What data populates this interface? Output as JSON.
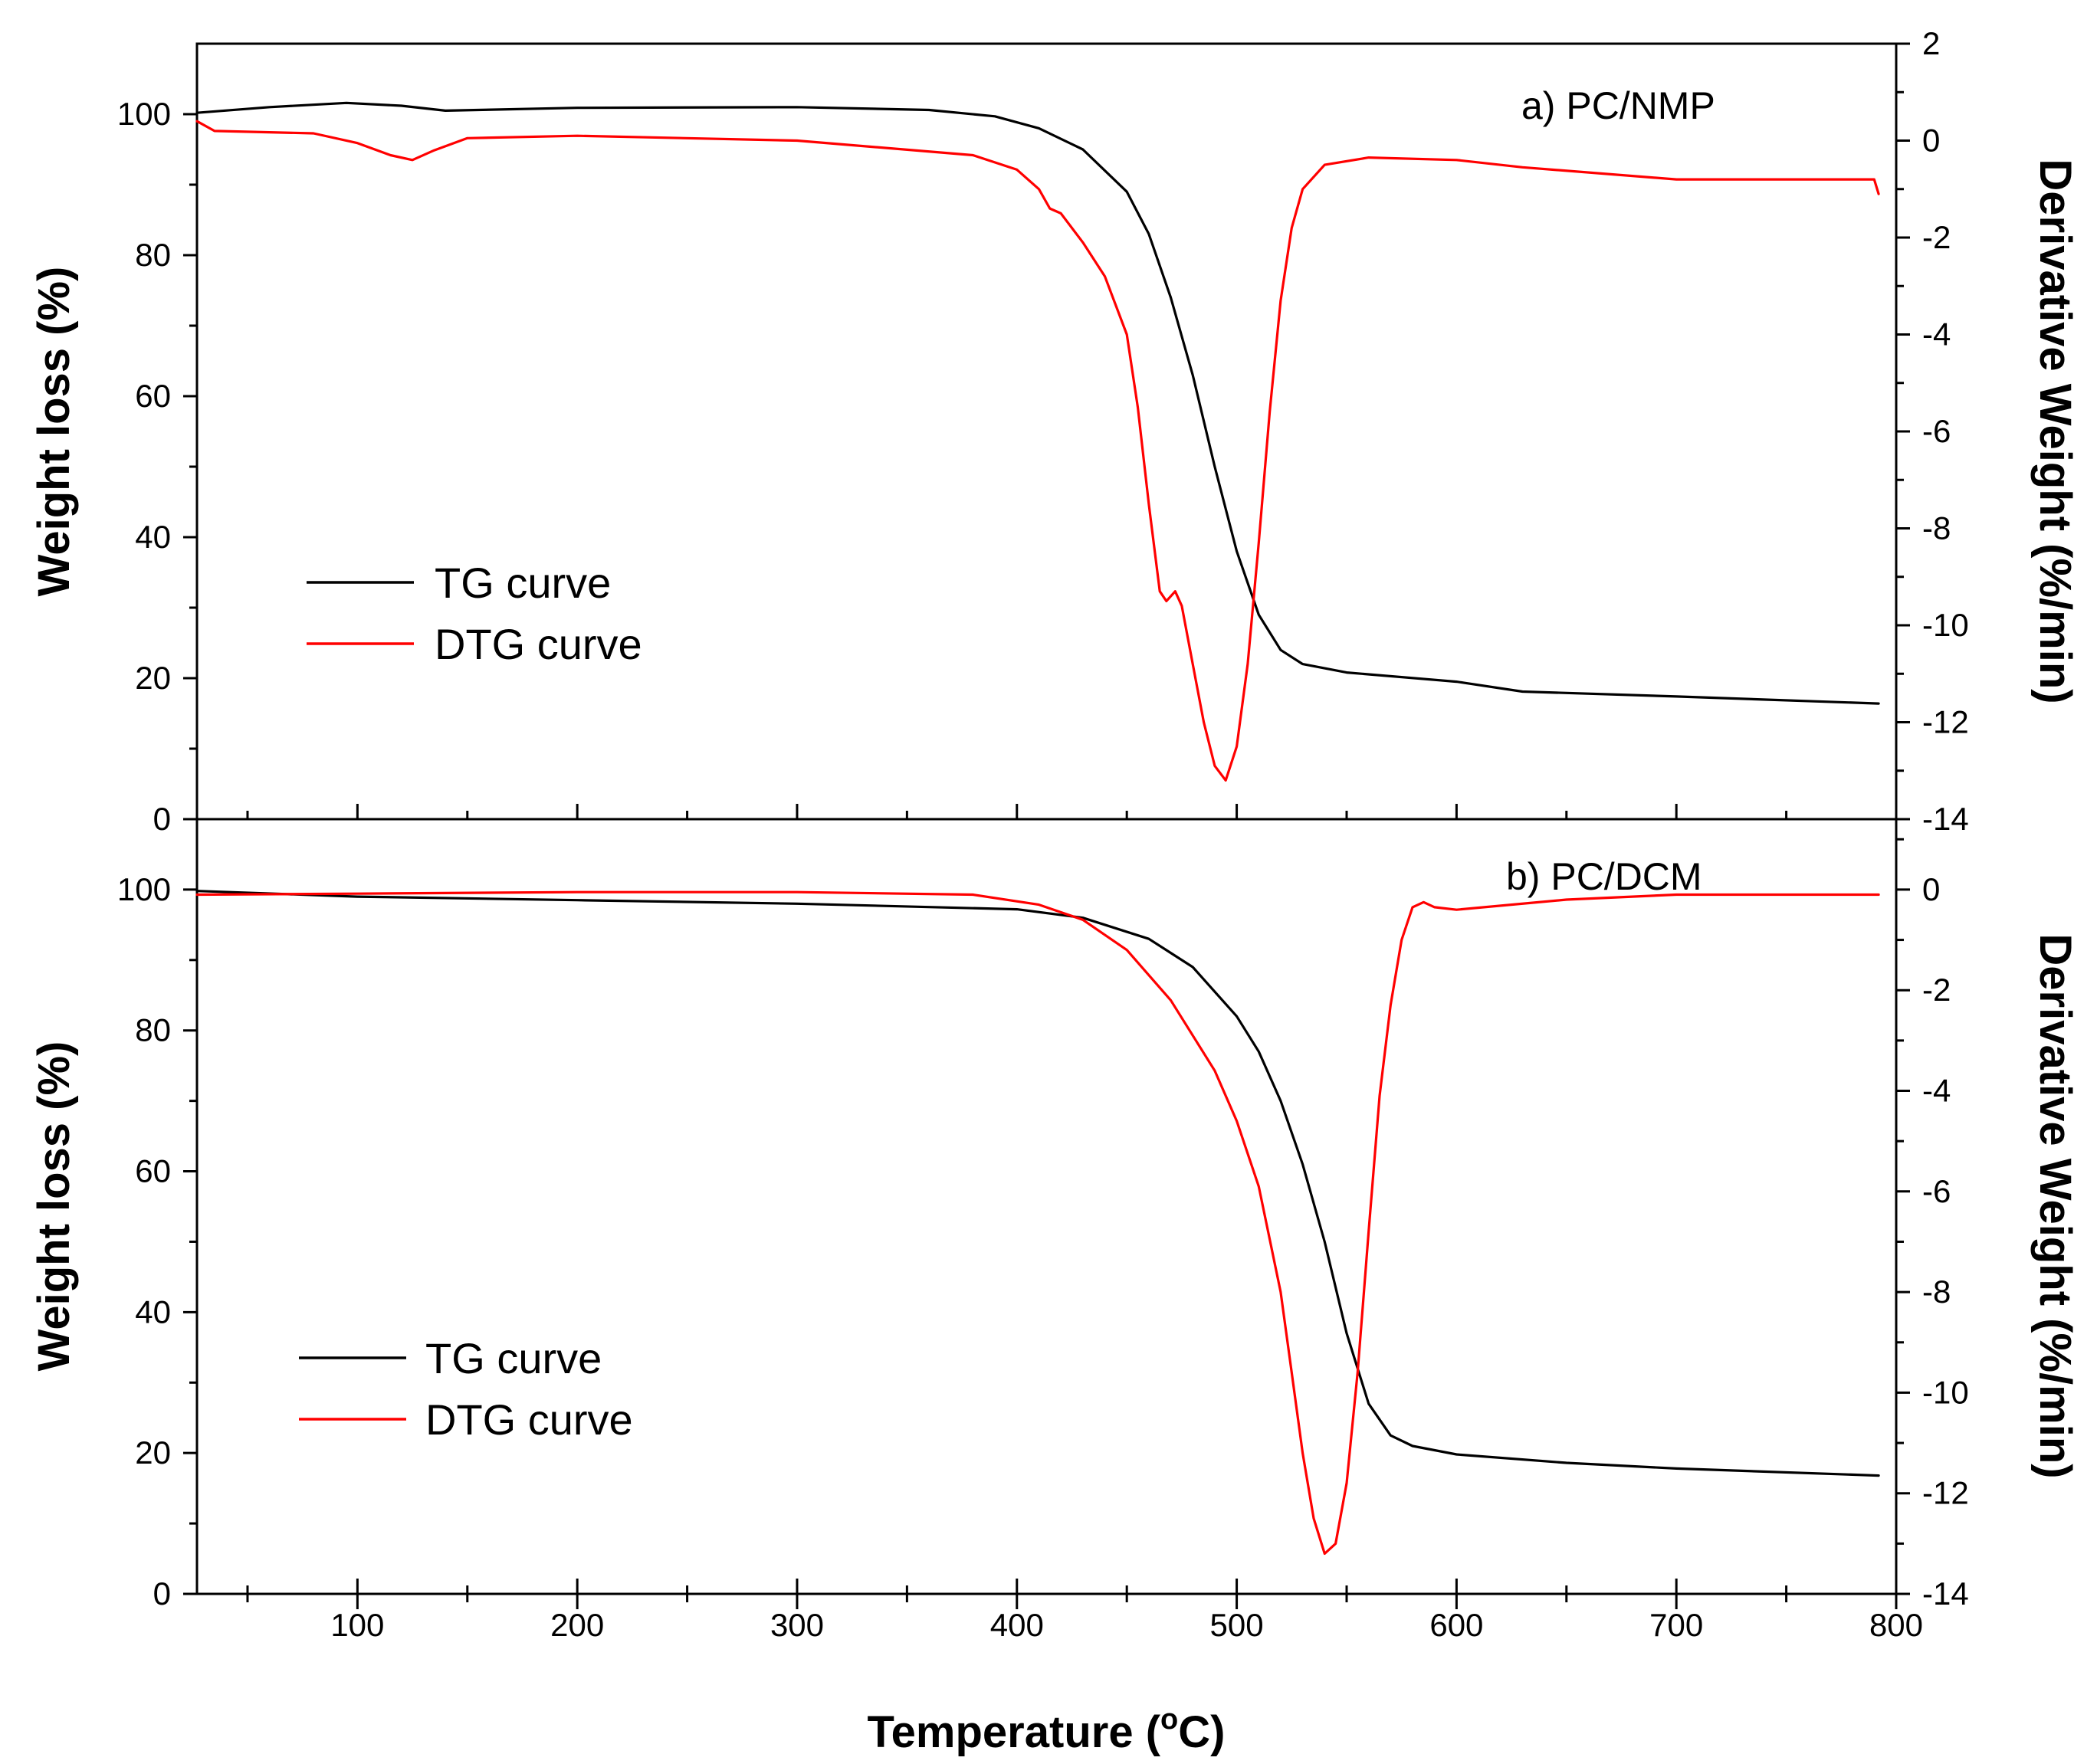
{
  "colors": {
    "tg": "#000000",
    "dtg": "#ff0000"
  },
  "x_axis": {
    "label": "Temperature (",
    "label_sup": "o",
    "label_end": "C)",
    "range": [
      27,
      800
    ],
    "ticks": [
      100,
      200,
      300,
      400,
      500,
      600,
      700,
      800
    ]
  },
  "chart_data": [
    {
      "type": "line",
      "panel": "a) PC/NMP",
      "ylabel_left": "Weight loss (%)",
      "ylabel_right": "Derivative Weight (%/min)",
      "ylim_left": [
        0,
        110
      ],
      "ylim_right": [
        -14,
        2
      ],
      "yticks_left": [
        0,
        20,
        40,
        60,
        80,
        100
      ],
      "yticks_right": [
        -14,
        -12,
        -10,
        -8,
        -6,
        -4,
        -2,
        0,
        2
      ],
      "legend": [
        "TG curve",
        "DTG curve"
      ],
      "series": [
        {
          "name": "TG curve",
          "axis": "left",
          "x": [
            27,
            60,
            95,
            120,
            140,
            200,
            300,
            360,
            390,
            410,
            430,
            450,
            460,
            470,
            480,
            490,
            500,
            510,
            520,
            530,
            550,
            600,
            630,
            700,
            792
          ],
          "y": [
            100.2,
            101.0,
            101.6,
            101.2,
            100.5,
            100.9,
            101.0,
            100.6,
            99.7,
            98.0,
            95.0,
            89.0,
            83.0,
            74.0,
            63.0,
            50.0,
            38.0,
            29.0,
            24.0,
            22.0,
            20.8,
            19.5,
            18.1,
            17.4,
            16.4
          ]
        },
        {
          "name": "DTG curve",
          "axis": "right",
          "x": [
            27,
            35,
            80,
            100,
            115,
            125,
            135,
            150,
            200,
            300,
            380,
            400,
            410,
            415,
            420,
            430,
            440,
            450,
            455,
            460,
            465,
            468,
            472,
            475,
            480,
            485,
            490,
            495,
            500,
            505,
            510,
            515,
            520,
            525,
            530,
            540,
            560,
            600,
            630,
            700,
            790,
            792
          ],
          "y": [
            0.4,
            0.2,
            0.15,
            -0.05,
            -0.3,
            -0.4,
            -0.2,
            0.05,
            0.1,
            0.0,
            -0.3,
            -0.6,
            -1.0,
            -1.4,
            -1.5,
            -2.1,
            -2.8,
            -4.0,
            -5.5,
            -7.5,
            -9.3,
            -9.5,
            -9.3,
            -9.6,
            -10.8,
            -12.0,
            -12.9,
            -13.2,
            -12.5,
            -10.8,
            -8.3,
            -5.6,
            -3.3,
            -1.8,
            -1.0,
            -0.5,
            -0.35,
            -0.4,
            -0.55,
            -0.8,
            -0.8,
            -1.1
          ]
        }
      ]
    },
    {
      "type": "line",
      "panel": "b) PC/DCM",
      "ylabel_left": "Weight loss (%)",
      "ylabel_right": "Derivative Weight (%/min)",
      "ylim_left": [
        0,
        110
      ],
      "ylim_right": [
        -14,
        1.4
      ],
      "yticks_left": [
        0,
        20,
        40,
        60,
        80,
        100
      ],
      "yticks_right": [
        -14,
        -12,
        -10,
        -8,
        -6,
        -4,
        -2,
        0
      ],
      "legend": [
        "TG curve",
        "DTG curve"
      ],
      "series": [
        {
          "name": "TG curve",
          "axis": "left",
          "x": [
            27,
            100,
            200,
            300,
            400,
            430,
            460,
            480,
            500,
            510,
            520,
            530,
            540,
            550,
            560,
            570,
            580,
            600,
            650,
            700,
            792
          ],
          "y": [
            99.8,
            99.0,
            98.5,
            98.0,
            97.2,
            96.0,
            93.0,
            89.0,
            82.0,
            77.0,
            70.0,
            61.0,
            50.0,
            37.0,
            27.0,
            22.5,
            21.0,
            19.8,
            18.6,
            17.8,
            16.8
          ],
          "y_comment": ""
        },
        {
          "name": "DTG curve",
          "axis": "right",
          "x": [
            27,
            100,
            200,
            300,
            380,
            410,
            430,
            450,
            470,
            490,
            500,
            510,
            520,
            525,
            530,
            535,
            540,
            545,
            550,
            555,
            560,
            565,
            570,
            575,
            580,
            585,
            590,
            600,
            650,
            700,
            792
          ],
          "y": [
            -0.1,
            -0.08,
            -0.05,
            -0.05,
            -0.1,
            -0.3,
            -0.6,
            -1.2,
            -2.2,
            -3.6,
            -4.6,
            -5.9,
            -8.0,
            -9.6,
            -11.2,
            -12.5,
            -13.2,
            -13.0,
            -11.8,
            -9.6,
            -6.8,
            -4.1,
            -2.3,
            -1.0,
            -0.35,
            -0.25,
            -0.35,
            -0.4,
            -0.2,
            -0.1,
            -0.1
          ]
        }
      ]
    }
  ]
}
